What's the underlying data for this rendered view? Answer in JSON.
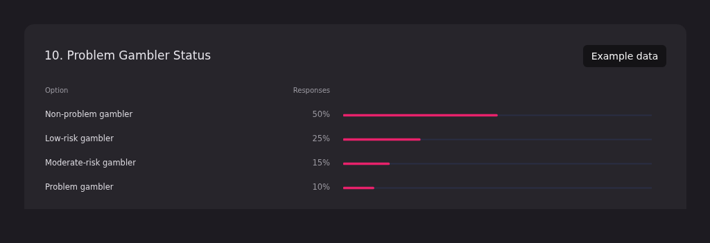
{
  "chart_data": {
    "type": "bar",
    "orientation": "horizontal",
    "title": "10. Problem Gambler Status",
    "xlabel": "Responses",
    "ylabel": "Option",
    "categories": [
      "Non-problem gambler",
      "Low-risk gambler",
      "Moderate-risk gambler",
      "Problem gambler"
    ],
    "values": [
      50,
      25,
      15,
      10
    ],
    "color": "#e8226b",
    "value_labels": [
      "50%",
      "25%",
      "15%",
      "10%"
    ],
    "xlim": [
      0,
      100
    ],
    "tick_labels": false,
    "annotations": [
      "Example data"
    ]
  }
}
